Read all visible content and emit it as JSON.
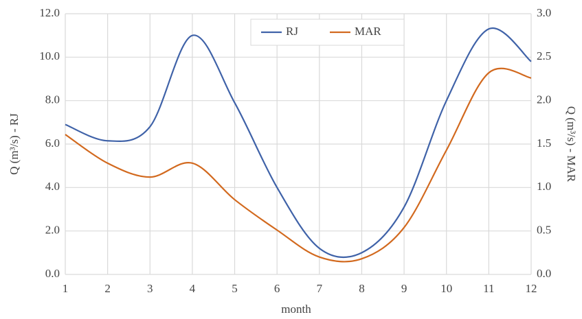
{
  "chart_data": {
    "type": "line",
    "x_label": "month",
    "y_label": "Q (m³/s) - RJ",
    "y2_label": "Q (m³/s) - MAR",
    "x": [
      1,
      2,
      3,
      4,
      5,
      6,
      7,
      8,
      9,
      10,
      11,
      12
    ],
    "xlim": [
      1,
      12
    ],
    "xticks": [
      1,
      2,
      3,
      4,
      5,
      6,
      7,
      8,
      9,
      10,
      11,
      12
    ],
    "ylim": [
      0,
      12
    ],
    "yticks": [
      {
        "value": 0,
        "label": "0.0"
      },
      {
        "value": 2,
        "label": "2.0"
      },
      {
        "value": 4,
        "label": "4.0"
      },
      {
        "value": 6,
        "label": "6.0"
      },
      {
        "value": 8,
        "label": "8.0"
      },
      {
        "value": 10,
        "label": "10.0"
      },
      {
        "value": 12,
        "label": "12.0"
      }
    ],
    "y2lim": [
      0,
      3
    ],
    "y2ticks": [
      {
        "value": 0,
        "label": "0.0"
      },
      0.5,
      {
        "value": 1,
        "label": "1.0"
      },
      1.5,
      {
        "value": 2,
        "label": "2.0"
      },
      2.5,
      {
        "value": 3,
        "label": "3.0"
      }
    ],
    "grid": true,
    "smooth": true,
    "legend": "top",
    "series": [
      {
        "name": "RJ",
        "color": "#3f62a8",
        "values": [
          6.9,
          6.15,
          6.8,
          11.0,
          7.9,
          4.0,
          1.2,
          1.0,
          3.1,
          8.0,
          11.3,
          9.8
        ]
      },
      {
        "name": "MAR",
        "color": "#d2691e",
        "axis": "y2",
        "values": [
          1.61,
          1.28,
          1.12,
          1.28,
          0.86,
          0.51,
          0.2,
          0.18,
          0.54,
          1.43,
          2.32,
          2.26
        ]
      }
    ]
  }
}
